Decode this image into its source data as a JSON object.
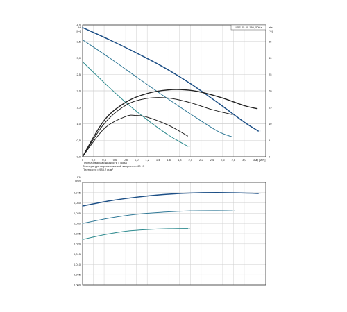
{
  "chart_data": [
    {
      "type": "line",
      "product_label": "UPS 25-40 180, 50Hz",
      "y_axis_title": "H",
      "y_axis_unit": "[m]",
      "y2_axis_title": "eta",
      "y2_axis_unit": "[%]",
      "x_axis_title": "Q",
      "x_axis_unit": "[м³/ч]",
      "xlim": [
        0,
        3.4
      ],
      "ylim": [
        0,
        4.0
      ],
      "y2lim": [
        0,
        40
      ],
      "x_ticks": [
        "0",
        "0,2",
        "0,4",
        "0,6",
        "0,8",
        "1,0",
        "1,2",
        "1,4",
        "1,6",
        "1,8",
        "2,0",
        "2,2",
        "2,4",
        "2,6",
        "2,8",
        "3,0",
        "3,2"
      ],
      "y_ticks": [
        "0,0",
        "0,5",
        "1,0",
        "1,5",
        "2,0",
        "2,5",
        "3,0",
        "3,5",
        "4,0"
      ],
      "y2_ticks": [
        "0",
        "5",
        "10",
        "15",
        "20",
        "25",
        "30",
        "35"
      ],
      "grid": true,
      "notes": [
        "Перекачиваемая жидкость = Вода",
        "Температура перекачиваемой жидкости = 60 °C",
        "Плотность = 983,2 кг/м³"
      ],
      "colors": {
        "speed3": "#1c4f86",
        "speed2": "#2f7896",
        "speed1": "#2c8a8e",
        "efficiency": "#222222"
      },
      "series": [
        {
          "kind": "head",
          "color": "speed3",
          "x": [
            0,
            0.5,
            1.0,
            1.5,
            2.0,
            2.5,
            3.0,
            3.26
          ],
          "y": [
            3.92,
            3.55,
            3.15,
            2.72,
            2.22,
            1.65,
            1.05,
            0.78
          ]
        },
        {
          "kind": "head",
          "color": "speed2",
          "x": [
            0,
            0.5,
            1.0,
            1.5,
            2.0,
            2.5,
            2.78
          ],
          "y": [
            3.55,
            3.0,
            2.42,
            1.85,
            1.3,
            0.78,
            0.6
          ]
        },
        {
          "kind": "head",
          "color": "speed1",
          "x": [
            0,
            0.4,
            0.8,
            1.2,
            1.6,
            1.95
          ],
          "y": [
            2.88,
            2.25,
            1.65,
            1.12,
            0.65,
            0.32
          ]
        },
        {
          "kind": "efficiency",
          "color": "efficiency",
          "x": [
            0,
            0.4,
            0.8,
            1.2,
            1.6,
            1.9,
            2.2,
            2.6,
            3.0,
            3.24
          ],
          "y": [
            0,
            11,
            16.5,
            19.2,
            20.3,
            20.3,
            19.6,
            17.8,
            15.5,
            14.6
          ]
        },
        {
          "kind": "efficiency",
          "color": "efficiency",
          "x": [
            0,
            0.4,
            0.8,
            1.2,
            1.6,
            2.0,
            2.4,
            2.78
          ],
          "y": [
            0,
            10,
            15.6,
            17.7,
            17.8,
            16.4,
            14.3,
            12.8
          ]
        },
        {
          "kind": "efficiency",
          "color": "efficiency",
          "x": [
            0,
            0.4,
            0.8,
            1.0,
            1.2,
            1.6,
            1.95
          ],
          "y": [
            0,
            8.5,
            12.2,
            12.5,
            12.0,
            9.5,
            6.3
          ]
        }
      ]
    },
    {
      "type": "line",
      "y_axis_title": "P1",
      "y_axis_unit": "[kW]",
      "xlim": [
        0,
        3.4
      ],
      "ylim": [
        0,
        0.05
      ],
      "y_ticks": [
        "0,000",
        "0,005",
        "0,010",
        "0,015",
        "0,020",
        "0,025",
        "0,030",
        "0,035",
        "0,040",
        "0,045"
      ],
      "grid": true,
      "series": [
        {
          "kind": "power",
          "color": "speed3",
          "x": [
            0,
            0.5,
            1.0,
            1.5,
            2.0,
            2.5,
            3.0,
            3.26
          ],
          "y": [
            0.0385,
            0.041,
            0.0428,
            0.0441,
            0.0448,
            0.045,
            0.0448,
            0.0446
          ]
        },
        {
          "kind": "power",
          "color": "speed2",
          "x": [
            0,
            0.5,
            1.0,
            1.5,
            2.0,
            2.5,
            2.78
          ],
          "y": [
            0.03,
            0.0326,
            0.0345,
            0.0355,
            0.0361,
            0.0362,
            0.0361
          ]
        },
        {
          "kind": "power",
          "color": "speed1",
          "x": [
            0,
            0.4,
            0.8,
            1.2,
            1.6,
            1.95
          ],
          "y": [
            0.0222,
            0.0245,
            0.0262,
            0.027,
            0.0274,
            0.0275
          ]
        }
      ]
    }
  ]
}
